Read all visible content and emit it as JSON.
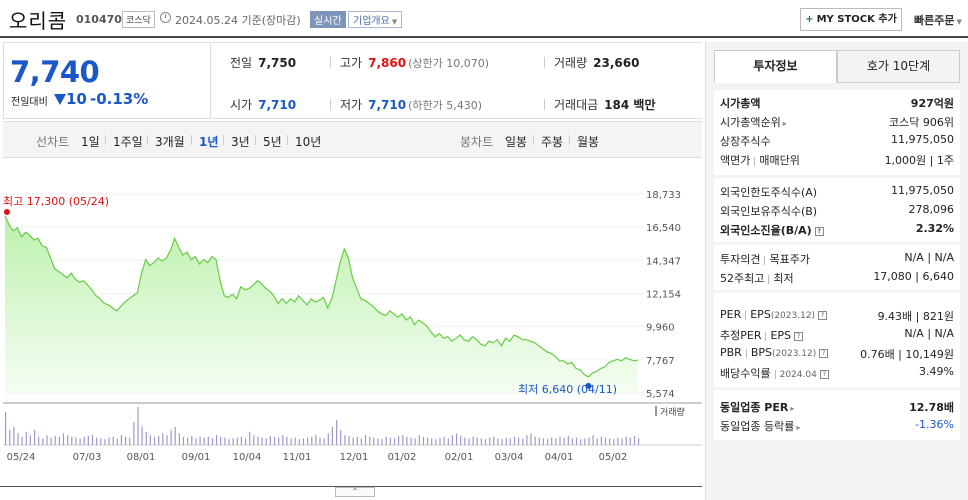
{
  "header": {
    "stock_name": "오리콤",
    "stock_code": "010470",
    "market": "코스닥",
    "date_text": "2024.05.24  기준(장마감)",
    "realtime": "실시간",
    "company_overview": "기업개요",
    "mystock_label": "MY STOCK 추가",
    "quick_order": "빠른주문"
  },
  "price": {
    "current": "7,740",
    "prev_label": "전일대비",
    "change": "10",
    "rate": "-0.13%"
  },
  "stats": {
    "prev_close_label": "전일",
    "prev_close": "7,750",
    "high_label": "고가",
    "high": "7,860",
    "upper_limit": "(상한가 10,070)",
    "volume_label": "거래량",
    "volume": "23,660",
    "open_label": "시가",
    "open": "7,710",
    "low_label": "저가",
    "low": "7,710",
    "lower_limit": "(하한가 5,430)",
    "amount_label": "거래대금",
    "amount": "184 백만"
  },
  "tabs": {
    "line_chart": "선차트",
    "periods": [
      "1일",
      "1주일",
      "3개월",
      "1년",
      "3년",
      "5년",
      "10년"
    ],
    "active_period": "1년",
    "candle_chart": "봉차트",
    "candles": [
      "일봉",
      "주봉",
      "월봉"
    ]
  },
  "chart_data": {
    "type": "area",
    "y_ticks": [
      "18,733",
      "16,540",
      "14,347",
      "12,154",
      "9,960",
      "7,767",
      "5,574"
    ],
    "y_range": [
      5574,
      18733
    ],
    "x_ticks": [
      "05/24",
      "07/03",
      "08/01",
      "09/01",
      "10/04",
      "11/01",
      "12/01",
      "01/02",
      "02/01",
      "03/04",
      "04/01",
      "05/02"
    ],
    "high_label": "최고 17,300 (05/24)",
    "low_label": "최저 6,640 (04/11)",
    "volume_label": "거래량",
    "prices": [
      17300,
      16700,
      16300,
      16500,
      15900,
      16200,
      16000,
      15700,
      15800,
      15300,
      15200,
      14500,
      13800,
      13600,
      13400,
      13200,
      13500,
      13100,
      12900,
      13000,
      12700,
      12400,
      12000,
      11800,
      11500,
      11400,
      11200,
      11000,
      11300,
      11600,
      11800,
      12000,
      12200,
      13500,
      14400,
      14000,
      14200,
      14500,
      14300,
      14500,
      15000,
      15800,
      15200,
      14700,
      14900,
      14400,
      14600,
      14100,
      14400,
      14200,
      14600,
      14400,
      13000,
      12000,
      11900,
      12100,
      11800,
      12600,
      12400,
      12500,
      12700,
      13000,
      12800,
      12500,
      12300,
      12000,
      11500,
      11800,
      11500,
      11800,
      11600,
      12000,
      11700,
      11400,
      11800,
      11600,
      11700,
      11900,
      11200,
      11800,
      13000,
      14200,
      15100,
      14500,
      13200,
      12500,
      11800,
      11700,
      11500,
      11300,
      11000,
      10800,
      10700,
      11000,
      10800,
      10600,
      10800,
      10400,
      10600,
      10100,
      10400,
      10200,
      10000,
      9600,
      9300,
      9500,
      9200,
      9300,
      9000,
      9200,
      9400,
      9100,
      9000,
      9300,
      9100,
      8800,
      8700,
      9000,
      8900,
      9100,
      8700,
      9200,
      9000,
      9400,
      9300,
      9100,
      9100,
      9000,
      8900,
      8700,
      8500,
      8300,
      8200,
      8000,
      7700,
      7700,
      7500,
      7600,
      7200,
      7100,
      6800,
      6640,
      6900,
      7000,
      7200,
      7300,
      7600,
      7700,
      7800,
      7700,
      7900,
      7800,
      7700,
      7740
    ],
    "volumes": [
      40,
      18,
      22,
      14,
      10,
      16,
      12,
      18,
      10,
      8,
      12,
      9,
      11,
      10,
      14,
      12,
      10,
      9,
      8,
      10,
      11,
      12,
      9,
      8,
      7,
      9,
      10,
      8,
      12,
      10,
      9,
      28,
      46,
      22,
      16,
      12,
      10,
      11,
      14,
      12,
      18,
      22,
      14,
      10,
      9,
      11,
      8,
      10,
      9,
      10,
      8,
      12,
      10,
      9,
      7,
      8,
      9,
      10,
      8,
      16,
      12,
      10,
      9,
      8,
      11,
      10,
      9,
      12,
      10,
      8,
      9,
      7,
      8,
      9,
      10,
      12,
      9,
      8,
      14,
      22,
      30,
      18,
      12,
      11,
      9,
      10,
      8,
      12,
      10,
      9,
      8,
      7,
      10,
      9,
      8,
      11,
      12,
      10,
      9,
      8,
      12,
      10,
      9,
      8,
      7,
      9,
      10,
      8,
      12,
      14,
      11,
      9,
      8,
      10,
      9,
      8,
      7,
      9,
      10,
      8,
      7,
      9,
      8,
      10,
      9,
      8,
      12,
      14,
      10,
      9,
      8,
      7,
      9,
      8,
      10,
      9,
      11,
      8,
      9,
      7,
      8,
      9,
      12,
      8,
      10,
      9,
      8,
      7,
      9,
      8,
      10,
      9,
      11,
      8
    ]
  },
  "right": {
    "tab_invest": "투자정보",
    "tab_hoga": "호가 10단계",
    "mcap_label": "시가총액",
    "mcap": "927억원",
    "mcap_rank_label": "시가총액순위",
    "mcap_rank": "코스닥 906위",
    "shares_label": "상장주식수",
    "shares": "11,975,050",
    "par_label": "액면가",
    "unit_label": "매매단위",
    "par_unit": "1,000원 | 1주",
    "foreign_limit_label": "외국인한도주식수(A)",
    "foreign_limit": "11,975,050",
    "foreign_hold_label": "외국인보유주식수(B)",
    "foreign_hold": "278,096",
    "foreign_rate_label": "외국인소진율(B/A)",
    "foreign_rate": "2.32%",
    "opinion_label": "투자의견",
    "target_label": "목표주가",
    "opinion_val": "N/A | N/A",
    "w52_label": "52주최고",
    "w52_low_label": "최저",
    "w52_val": "17,080 | 6,640",
    "per_label": "PER",
    "eps_label": "EPS",
    "eps_period": "(2023.12)",
    "per_eps_val": "9.43배 | 821원",
    "est_per_label": "추정PER",
    "est_eps_label": "EPS",
    "est_val": "N/A | N/A",
    "pbr_label": "PBR",
    "bps_label": "BPS",
    "bps_period": "(2023.12)",
    "pbr_bps_val": "0.76배 | 10,149원",
    "div_label": "배당수익률",
    "div_period": "2024.04",
    "div_val": "3.49%",
    "ind_per_label": "동일업종 PER",
    "ind_per": "12.78배",
    "ind_rate_label": "동일업종 등락률",
    "ind_rate": "-1.36%"
  }
}
